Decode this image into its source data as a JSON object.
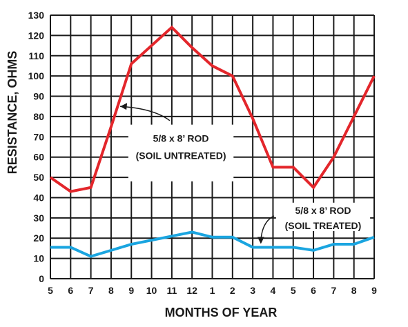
{
  "chart_data": {
    "type": "line",
    "title": "",
    "xlabel": "MONTHS OF YEAR",
    "ylabel": "RESISTANCE, OHMS",
    "categories": [
      "5",
      "6",
      "7",
      "8",
      "9",
      "10",
      "11",
      "12",
      "1",
      "2",
      "3",
      "4",
      "5",
      "6",
      "7",
      "8",
      "9"
    ],
    "ylim": [
      0,
      130
    ],
    "yticks": [
      0,
      10,
      20,
      30,
      40,
      50,
      60,
      70,
      80,
      90,
      100,
      110,
      120,
      130
    ],
    "grid": true,
    "series": [
      {
        "name": "5/8 x 8’ ROD (SOIL UNTREATED)",
        "color": "#e3262b",
        "values": [
          50,
          43,
          45,
          75,
          106,
          115,
          124,
          114,
          105,
          100,
          79,
          55,
          55,
          45,
          60,
          80,
          100
        ]
      },
      {
        "name": "5/8 x 8’ ROD (SOIL TREATED)",
        "color": "#1aa5e0",
        "values": [
          15.5,
          15.5,
          11,
          14,
          17,
          19,
          21,
          23,
          20.5,
          20.5,
          15.5,
          15.5,
          15.5,
          14,
          17,
          17,
          20.5
        ]
      }
    ],
    "annotations": [
      {
        "line1": "5/8 x 8’ ROD",
        "line2": "(SOIL UNTREATED)"
      },
      {
        "line1": "5/8 x 8’ ROD",
        "line2": "(SOIL TREATED)"
      }
    ]
  }
}
